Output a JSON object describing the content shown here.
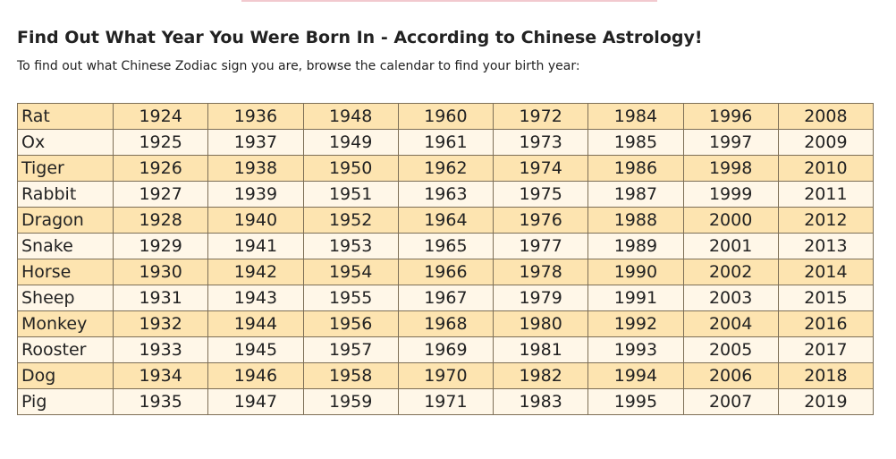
{
  "header": {
    "title": "Find Out What Year You Were Born In - According to Chinese Astrology!",
    "subtitle": "To find out what Chinese Zodiac sign you are, browse the calendar to find your birth year:"
  },
  "table": {
    "rows": [
      [
        "Rat",
        1924,
        1936,
        1948,
        1960,
        1972,
        1984,
        1996,
        2008
      ],
      [
        "Ox",
        1925,
        1937,
        1949,
        1961,
        1973,
        1985,
        1997,
        2009
      ],
      [
        "Tiger",
        1926,
        1938,
        1950,
        1962,
        1974,
        1986,
        1998,
        2010
      ],
      [
        "Rabbit",
        1927,
        1939,
        1951,
        1963,
        1975,
        1987,
        1999,
        2011
      ],
      [
        "Dragon",
        1928,
        1940,
        1952,
        1964,
        1976,
        1988,
        2000,
        2012
      ],
      [
        "Snake",
        1929,
        1941,
        1953,
        1965,
        1977,
        1989,
        2001,
        2013
      ],
      [
        "Horse",
        1930,
        1942,
        1954,
        1966,
        1978,
        1990,
        2002,
        2014
      ],
      [
        "Sheep",
        1931,
        1943,
        1955,
        1967,
        1979,
        1991,
        2003,
        2015
      ],
      [
        "Monkey",
        1932,
        1944,
        1956,
        1968,
        1980,
        1992,
        2004,
        2016
      ],
      [
        "Rooster",
        1933,
        1945,
        1957,
        1969,
        1981,
        1993,
        2005,
        2017
      ],
      [
        "Dog",
        1934,
        1946,
        1958,
        1970,
        1982,
        1994,
        2006,
        2018
      ],
      [
        "Pig",
        1935,
        1947,
        1959,
        1971,
        1983,
        1995,
        2007,
        2019
      ]
    ]
  }
}
